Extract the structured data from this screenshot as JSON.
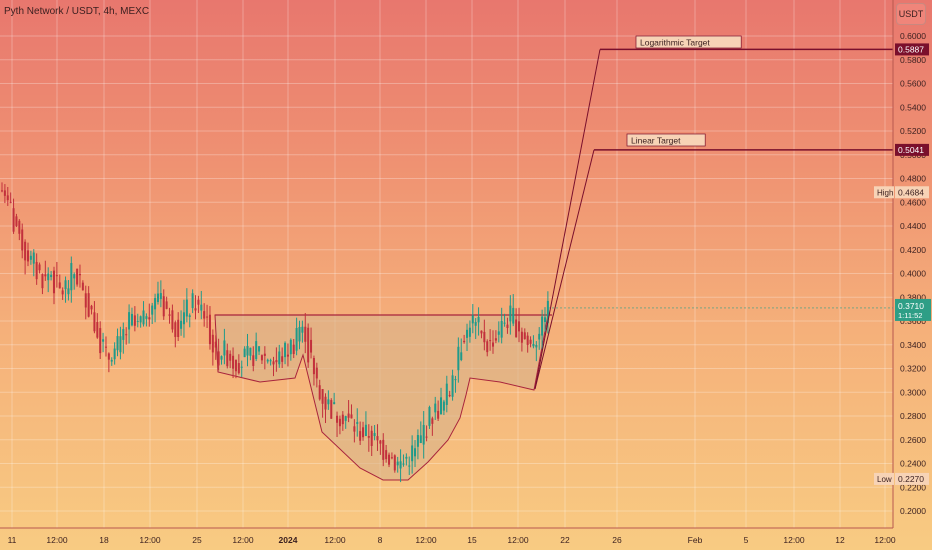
{
  "header": {
    "title": "Pyth Network / USDT, 4h, MEXC",
    "currency_button": "USDT"
  },
  "colors": {
    "up": "#1f9a8a",
    "down": "#c2303c",
    "pattern_line": "#a8243c",
    "pattern_fill": "#d9b38a",
    "target_line": "#7a0f2c",
    "price_badge": "#2e9e86"
  },
  "chart_data": {
    "type": "candlestick",
    "y_axis": {
      "range": [
        0.19,
        0.61
      ],
      "tick_labels": [
        "0.6000",
        "0.5800",
        "0.5600",
        "0.5400",
        "0.5200",
        "0.5000",
        "0.4800",
        "0.4600",
        "0.4400",
        "0.4200",
        "0.4000",
        "0.3800",
        "0.3600",
        "0.3400",
        "0.3200",
        "0.3000",
        "0.2800",
        "0.2600",
        "0.2400",
        "0.2200",
        "0.2000"
      ]
    },
    "x_axis": {
      "tick_labels": [
        "11",
        "12:00",
        "18",
        "12:00",
        "25",
        "12:00",
        "2024",
        "12:00",
        "8",
        "12:00",
        "15",
        "12:00",
        "22",
        "26",
        "Feb",
        "5",
        "12:00",
        "12",
        "12:00"
      ]
    },
    "markers": [
      {
        "label": "High",
        "value": "0.4684"
      },
      {
        "label": "Low",
        "value": "0.2270"
      }
    ],
    "current_price": {
      "value": "0.3710",
      "countdown": "1:11:52"
    },
    "targets": [
      {
        "label": "Logarithmic Target",
        "value": "0.5887"
      },
      {
        "label": "Linear Target",
        "value": "0.5041"
      }
    ],
    "pattern": "cup-and-handle",
    "close_series": [
      0.47,
      0.455,
      0.44,
      0.425,
      0.415,
      0.41,
      0.4,
      0.395,
      0.4,
      0.39,
      0.385,
      0.39,
      0.4,
      0.395,
      0.38,
      0.37,
      0.355,
      0.34,
      0.33,
      0.335,
      0.34,
      0.35,
      0.36,
      0.355,
      0.36,
      0.37,
      0.375,
      0.385,
      0.37,
      0.36,
      0.355,
      0.365,
      0.37,
      0.375,
      0.37,
      0.365,
      0.34,
      0.33,
      0.335,
      0.33,
      0.325,
      0.325,
      0.33,
      0.33,
      0.335,
      0.33,
      0.33,
      0.325,
      0.33,
      0.335,
      0.34,
      0.355,
      0.35,
      0.33,
      0.31,
      0.295,
      0.29,
      0.285,
      0.28,
      0.28,
      0.275,
      0.27,
      0.265,
      0.265,
      0.26,
      0.255,
      0.25,
      0.245,
      0.24,
      0.24,
      0.245,
      0.25,
      0.26,
      0.27,
      0.28,
      0.285,
      0.29,
      0.3,
      0.32,
      0.34,
      0.35,
      0.36,
      0.355,
      0.345,
      0.34,
      0.345,
      0.355,
      0.36,
      0.365,
      0.355,
      0.345,
      0.34,
      0.345,
      0.355,
      0.37
    ]
  }
}
